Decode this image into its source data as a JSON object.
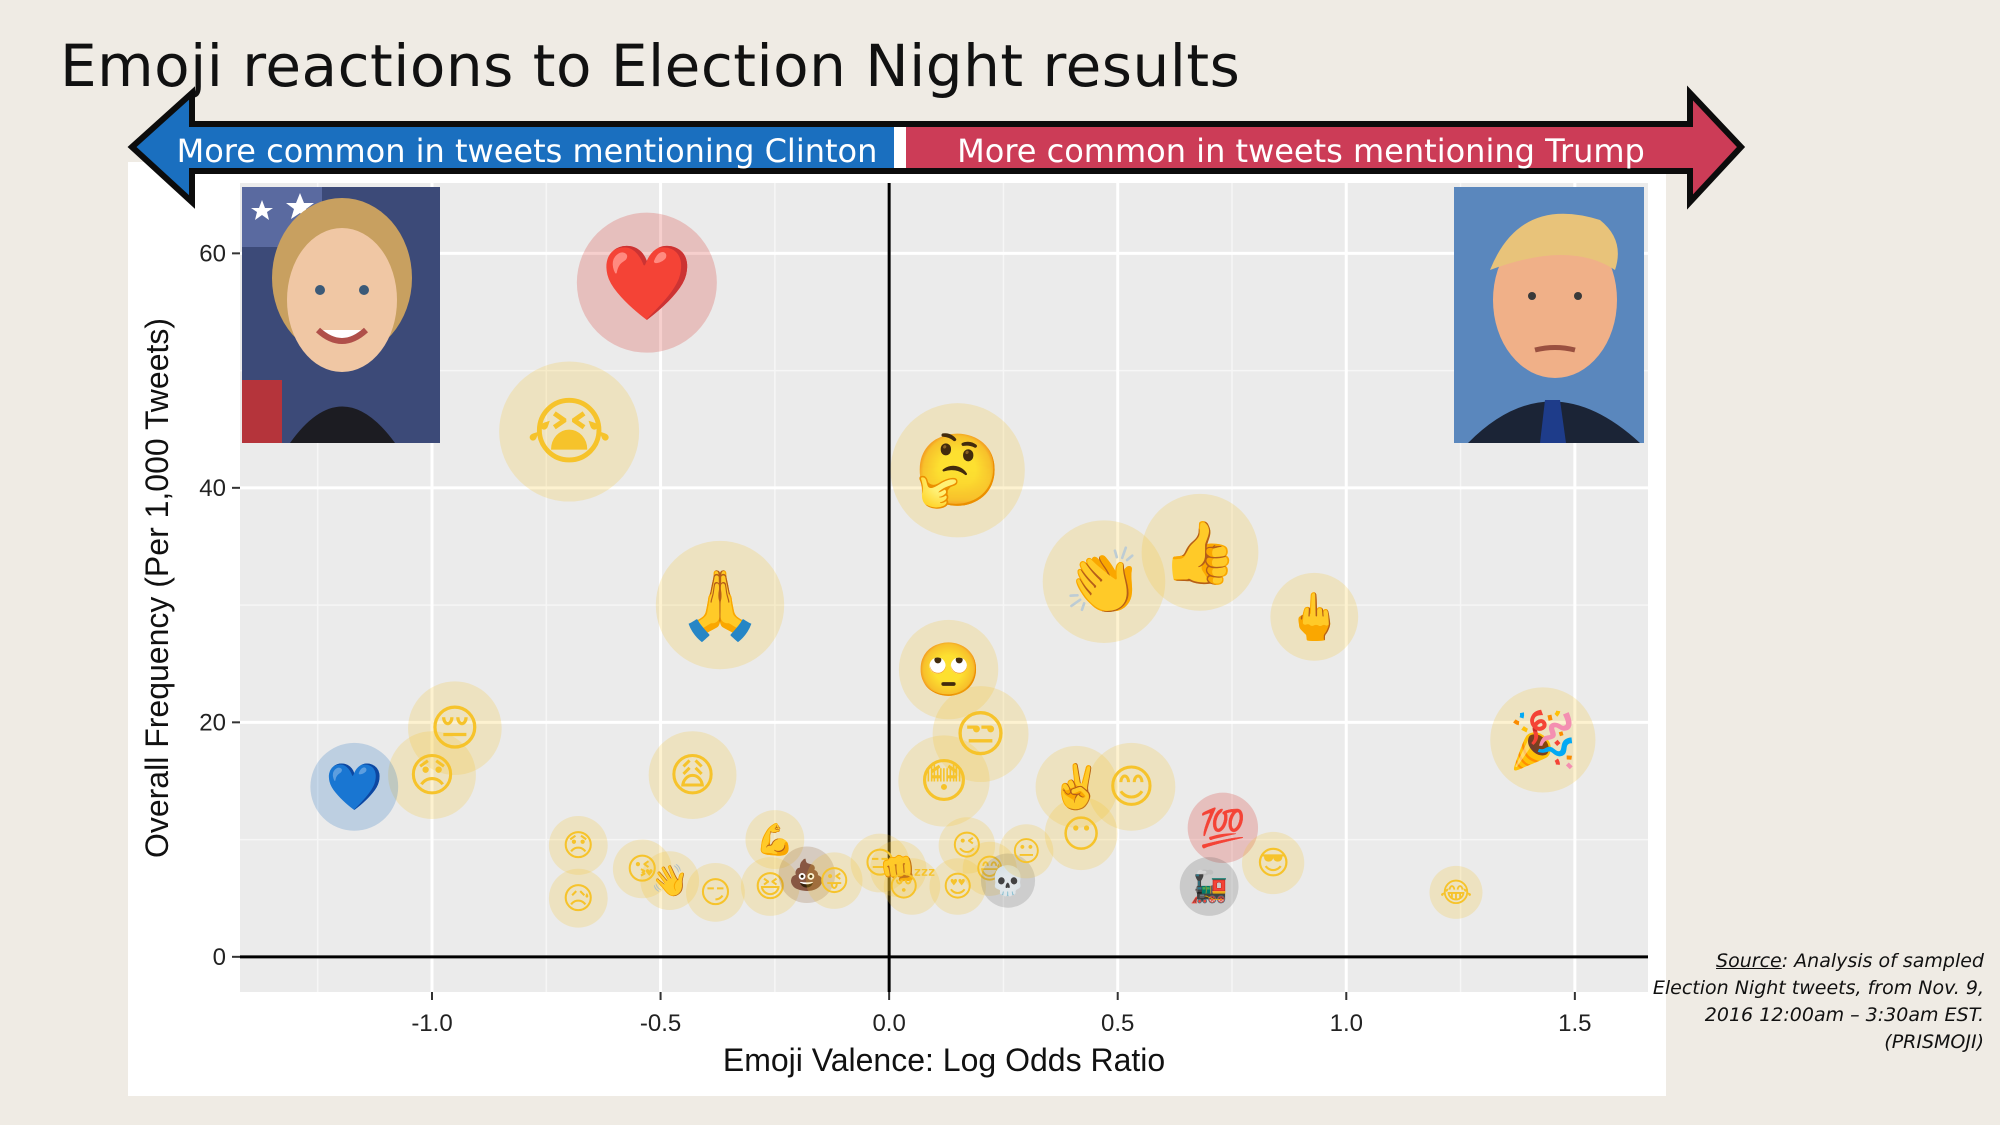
{
  "title": "Emoji reactions to Election Night results",
  "banners": {
    "left": "More common in tweets mentioning Clinton",
    "right": "More common in tweets mentioning Trump",
    "left_color": "#1a6fbf",
    "right_color": "#cc3c57"
  },
  "source": {
    "label": "Source",
    "text": ": Analysis of sampled Election Night tweets, from Nov. 9, 2016 12:00am – 3:30am EST. (PRISMOJI)"
  },
  "chart_data": {
    "type": "scatter",
    "title": "Emoji reactions to Election Night results",
    "xlabel": "Emoji Valence: Log Odds Ratio",
    "ylabel": "Overall Frequency (Per 1,000 Tweets)",
    "xlim": [
      -1.42,
      1.66
    ],
    "ylim": [
      -3,
      66
    ],
    "xticks": [
      -1.0,
      -0.5,
      0.0,
      0.5,
      1.0,
      1.5
    ],
    "xtick_labels": [
      "-1.0",
      "-0.5",
      "0.0",
      "0.5",
      "1.0",
      "1.5"
    ],
    "yticks": [
      0,
      20,
      40,
      60
    ],
    "ytick_labels": [
      "0",
      "20",
      "40",
      "60"
    ],
    "grid": true,
    "reference_lines": {
      "x": 0,
      "y": 0
    },
    "photos": {
      "left": "Hillary Clinton portrait",
      "right": "Donald Trump portrait"
    },
    "points": [
      {
        "emoji": "❤️",
        "name": "red-heart",
        "x": -0.53,
        "y": 57.5,
        "size": 1.0,
        "color": "#d8261d"
      },
      {
        "emoji": "😭",
        "name": "loudly-crying-face",
        "x": -0.7,
        "y": 44.8,
        "size": 1.0,
        "color": "#f6c32b"
      },
      {
        "emoji": "🤔",
        "name": "thinking-face",
        "x": 0.15,
        "y": 41.5,
        "size": 0.95,
        "color": "#f6c32b"
      },
      {
        "emoji": "🙏",
        "name": "folded-hands",
        "x": -0.37,
        "y": 30.0,
        "size": 0.9,
        "color": "#f6c32b"
      },
      {
        "emoji": "👏",
        "name": "clapping-hands",
        "x": 0.47,
        "y": 32.0,
        "size": 0.85,
        "color": "#f6c32b"
      },
      {
        "emoji": "👍",
        "name": "thumbs-up",
        "x": 0.68,
        "y": 34.5,
        "size": 0.8,
        "color": "#f6c32b"
      },
      {
        "emoji": "🖕",
        "name": "middle-finger",
        "x": 0.93,
        "y": 29.0,
        "size": 0.55,
        "color": "#f6c32b"
      },
      {
        "emoji": "🙄",
        "name": "face-with-rolling-eyes",
        "x": 0.13,
        "y": 24.5,
        "size": 0.65,
        "color": "#f6c32b"
      },
      {
        "emoji": "😒",
        "name": "unamused-face",
        "x": 0.2,
        "y": 19.0,
        "size": 0.62,
        "color": "#f6c32b"
      },
      {
        "emoji": "😳",
        "name": "flushed-face",
        "x": 0.12,
        "y": 15.0,
        "size": 0.58,
        "color": "#f6c32b"
      },
      {
        "emoji": "✌️",
        "name": "victory-hand",
        "x": 0.41,
        "y": 14.5,
        "size": 0.5,
        "color": "#f6c32b"
      },
      {
        "emoji": "😊",
        "name": "smiling-face",
        "x": 0.53,
        "y": 14.5,
        "size": 0.55,
        "color": "#f6c32b"
      },
      {
        "emoji": "😶",
        "name": "face-without-mouth",
        "x": 0.42,
        "y": 10.5,
        "size": 0.42,
        "color": "#f6c32b"
      },
      {
        "emoji": "🎉",
        "name": "party-popper",
        "x": 1.43,
        "y": 18.5,
        "size": 0.7,
        "color": "#f6c32b"
      },
      {
        "emoji": "😔",
        "name": "pensive-face",
        "x": -0.95,
        "y": 19.5,
        "size": 0.6,
        "color": "#f6c32b"
      },
      {
        "emoji": "😞",
        "name": "disappointed-face",
        "x": -1.0,
        "y": 15.5,
        "size": 0.55,
        "color": "#f6c32b"
      },
      {
        "emoji": "💙",
        "name": "blue-heart",
        "x": -1.17,
        "y": 14.5,
        "size": 0.55,
        "color": "#1a6fbf"
      },
      {
        "emoji": "😩",
        "name": "weary-face",
        "x": -0.43,
        "y": 15.5,
        "size": 0.55,
        "color": "#f6c32b"
      },
      {
        "emoji": "💯",
        "name": "hundred-points",
        "x": 0.73,
        "y": 11.0,
        "size": 0.4,
        "color": "#d8261d"
      },
      {
        "emoji": "😎",
        "name": "smiling-face-with-sunglasses",
        "x": 0.84,
        "y": 8.0,
        "size": 0.33,
        "color": "#f6c32b"
      },
      {
        "emoji": "🚂",
        "name": "steam-locomotive",
        "x": 0.7,
        "y": 6.0,
        "size": 0.3,
        "color": "#555555"
      },
      {
        "emoji": "😂",
        "name": "face-with-tears-of-joy",
        "x": 1.24,
        "y": 5.5,
        "size": 0.25,
        "color": "#f6c32b"
      },
      {
        "emoji": "😞",
        "name": "disappointed-face-small",
        "x": -0.68,
        "y": 9.5,
        "size": 0.3,
        "color": "#f6c32b"
      },
      {
        "emoji": "😥",
        "name": "sad-relieved-face",
        "x": -0.68,
        "y": 5.0,
        "size": 0.3,
        "color": "#f6c32b"
      },
      {
        "emoji": "😘",
        "name": "face-blowing-kiss",
        "x": -0.54,
        "y": 7.5,
        "size": 0.3,
        "color": "#f6c32b"
      },
      {
        "emoji": "👋",
        "name": "waving-hand",
        "x": -0.48,
        "y": 6.5,
        "size": 0.3,
        "color": "#f6c32b"
      },
      {
        "emoji": "😏",
        "name": "smirking-face",
        "x": -0.38,
        "y": 5.5,
        "size": 0.3,
        "color": "#f6c32b"
      },
      {
        "emoji": "💪",
        "name": "flexed-biceps",
        "x": -0.25,
        "y": 10.0,
        "size": 0.3,
        "color": "#f6c32b"
      },
      {
        "emoji": "😆",
        "name": "grinning-squinting-face",
        "x": -0.26,
        "y": 6.0,
        "size": 0.3,
        "color": "#f6c32b"
      },
      {
        "emoji": "💩",
        "name": "pile-of-poo",
        "x": -0.18,
        "y": 7.0,
        "size": 0.28,
        "color": "#8b5a2b"
      },
      {
        "emoji": "😜",
        "name": "winking-face-with-tongue",
        "x": -0.12,
        "y": 6.5,
        "size": 0.28,
        "color": "#f6c32b"
      },
      {
        "emoji": "😑",
        "name": "expressionless-face",
        "x": -0.02,
        "y": 8.0,
        "size": 0.3,
        "color": "#f6c32b"
      },
      {
        "emoji": "👊",
        "name": "oncoming-fist",
        "x": 0.02,
        "y": 7.5,
        "size": 0.28,
        "color": "#f6c32b"
      },
      {
        "emoji": "😴",
        "name": "sleeping-face",
        "x": 0.05,
        "y": 6.0,
        "size": 0.28,
        "color": "#f6c32b"
      },
      {
        "emoji": "😍",
        "name": "smiling-face-with-heart-eyes",
        "x": 0.15,
        "y": 6.0,
        "size": 0.28,
        "color": "#f6c32b"
      },
      {
        "emoji": "😉",
        "name": "winking-face",
        "x": 0.17,
        "y": 9.5,
        "size": 0.28,
        "color": "#f6c32b"
      },
      {
        "emoji": "😅",
        "name": "grinning-face-with-sweat",
        "x": 0.22,
        "y": 7.5,
        "size": 0.26,
        "color": "#f6c32b"
      },
      {
        "emoji": "💀",
        "name": "skull",
        "x": 0.26,
        "y": 6.5,
        "size": 0.26,
        "color": "#666666"
      },
      {
        "emoji": "😐",
        "name": "neutral-face",
        "x": 0.3,
        "y": 9.0,
        "size": 0.26,
        "color": "#f6c32b"
      }
    ]
  }
}
